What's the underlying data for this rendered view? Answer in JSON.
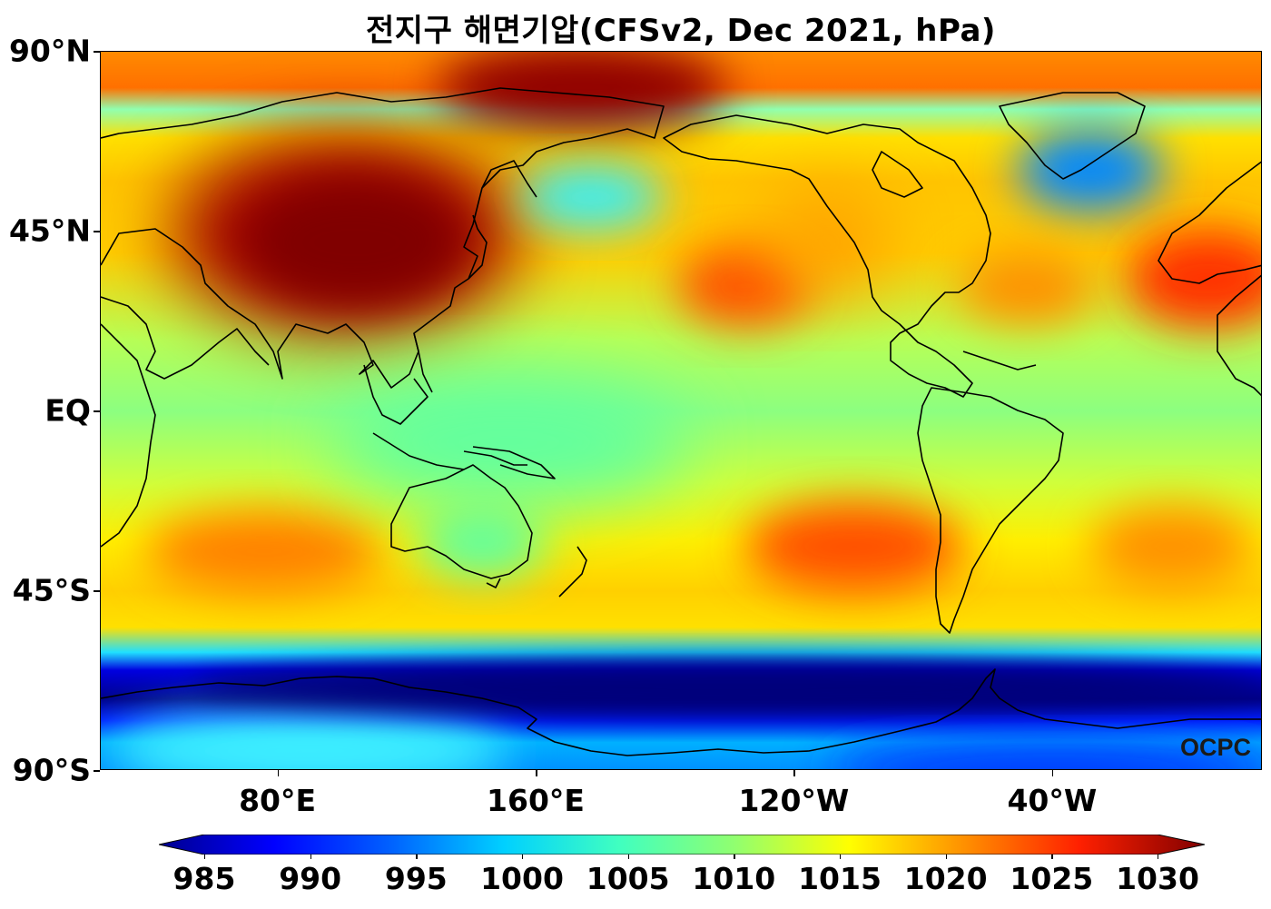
{
  "title": "전지구 해면기압(CFSv2, Dec 2021, hPa)",
  "lat_axis": {
    "labels": [
      {
        "text": "90°N",
        "lat": 90
      },
      {
        "text": "45°N",
        "lat": 45
      },
      {
        "text": "EQ",
        "lat": 0
      },
      {
        "text": "45°S",
        "lat": -45
      },
      {
        "text": "90°S",
        "lat": -90
      }
    ]
  },
  "lon_axis": {
    "labels": [
      {
        "text": "80°E",
        "lon": 80
      },
      {
        "text": "160°E",
        "lon": 160
      },
      {
        "text": "120°W",
        "lon": 240
      },
      {
        "text": "40°W",
        "lon": 320
      }
    ]
  },
  "colorbar": {
    "ticks": [
      "985",
      "990",
      "995",
      "1000",
      "1005",
      "1010",
      "1015",
      "1020",
      "1025",
      "1030"
    ],
    "colors": [
      "#00008f",
      "#0000ff",
      "#0060ff",
      "#00d0ff",
      "#40ffc0",
      "#90ff70",
      "#ffff00",
      "#ff9000",
      "#ff2000",
      "#800000"
    ]
  },
  "map_extent": {
    "lon_min": 25,
    "lon_max": 385,
    "lat_min": -90,
    "lat_max": 90
  },
  "credit": "OCPC"
}
